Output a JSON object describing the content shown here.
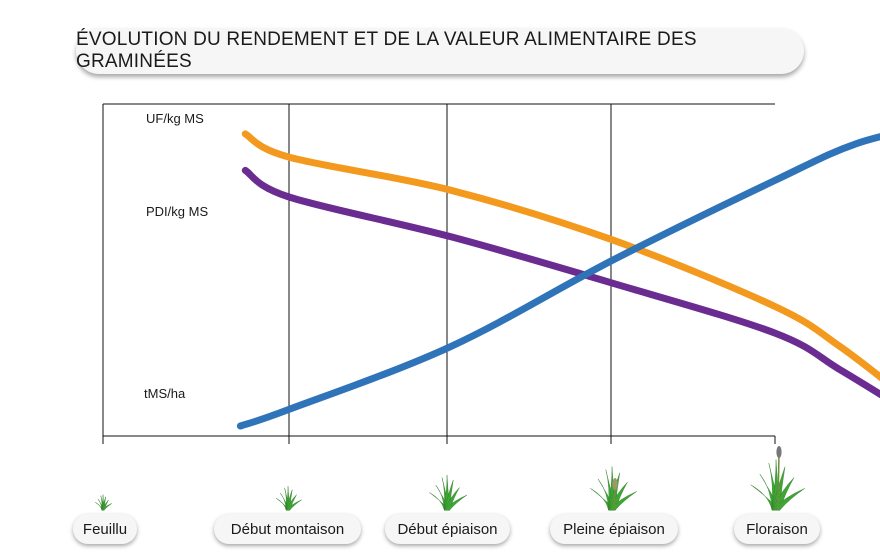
{
  "title": "ÉVOLUTION DU RENDEMENT ET DE LA VALEUR ALIMENTAIRE DES GRAMINÉES",
  "chart_data": {
    "type": "line",
    "title": "ÉVOLUTION DU RENDEMENT ET DE LA VALEUR ALIMENTAIRE DES GRAMINÉES",
    "categories": [
      "Feuillu",
      "Début montaison",
      "Début épiaison",
      "Pleine épiaison",
      "Floraison"
    ],
    "xlabel": "",
    "ylabel": "",
    "grid": "vertical",
    "y_scale": "relative (no numeric axis printed)",
    "series": [
      {
        "name": "UF/kg MS",
        "color": "#f39a1e",
        "x": [
          -0.27,
          0,
          1,
          2,
          3,
          3.4,
          3.8
        ],
        "values": [
          0.91,
          0.84,
          0.74,
          0.59,
          0.39,
          0.27,
          0.12
        ]
      },
      {
        "name": "PDI/kg MS",
        "color": "#6a2c91",
        "x": [
          -0.27,
          0,
          1,
          2,
          3,
          3.4,
          3.8
        ],
        "values": [
          0.8,
          0.72,
          0.6,
          0.46,
          0.31,
          0.2,
          0.08
        ]
      },
      {
        "name": "tMS/ha",
        "color": "#2f73b8",
        "x": [
          -0.3,
          0,
          1,
          2,
          3,
          3.5,
          4
        ],
        "values": [
          0.03,
          0.08,
          0.27,
          0.53,
          0.77,
          0.88,
          0.94
        ]
      }
    ]
  },
  "stages": [
    {
      "label": "Feuillu",
      "icon": "grass-seedling-icon"
    },
    {
      "label": "Début montaison",
      "icon": "grass-tuft-icon"
    },
    {
      "label": "Début épiaison",
      "icon": "grass-tuft-icon"
    },
    {
      "label": "Pleine épiaison",
      "icon": "grass-ear-icon"
    },
    {
      "label": "Floraison",
      "icon": "grass-flowering-icon"
    }
  ],
  "colors": {
    "uf": "#f39a1e",
    "pdi": "#6a2c91",
    "tms": "#2f73b8",
    "grass": "#3fa535",
    "frame": "#111111"
  }
}
